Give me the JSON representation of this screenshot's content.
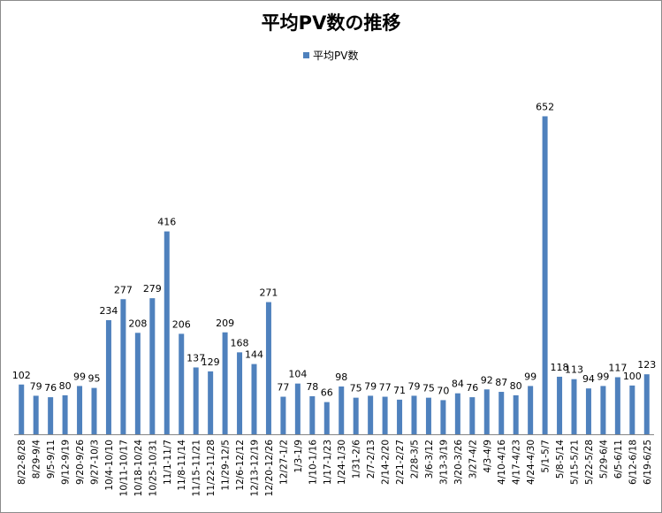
{
  "chart_data": {
    "type": "bar",
    "title": "平均PV数の推移",
    "legend": "平均PV数",
    "legend_position": "top",
    "xlabel": "",
    "ylabel": "",
    "ylim": [
      0,
      700
    ],
    "grid": false,
    "bar_color": "#4f81bd",
    "categories": [
      "8/22-8/28",
      "8/29-9/4",
      "9/5-9/11",
      "9/12-9/19",
      "9/20-9/26",
      "9/27-10/3",
      "10/4-10/10",
      "10/11-10/17",
      "10/18-10/24",
      "10/25-10/31",
      "11/1-11/7",
      "11/8-11/14",
      "11/15-11/21",
      "11/22-11/28",
      "11/29-12/5",
      "12/6-12/12",
      "12/13-12/19",
      "12/20-12/26",
      "12/27-1/2",
      "1/3-1/9",
      "1/10-1/16",
      "1/17-1/23",
      "1/24-1/30",
      "1/31-2/6",
      "2/7-2/13",
      "2/14-2/20",
      "2/21-2/27",
      "2/28-3/5",
      "3/6-3/12",
      "3/13-3/19",
      "3/20-3/26",
      "3/27-4/2",
      "4/3-4/9",
      "4/10-4/16",
      "4/17-4/23",
      "4/24-4/30",
      "5/1-5/7",
      "5/8-5/14",
      "5/15-5/21",
      "5/22-5/28",
      "5/29-6/4",
      "6/5-6/11",
      "6/12-6/18",
      "6/19-6/25"
    ],
    "values": [
      102,
      79,
      76,
      80,
      99,
      95,
      234,
      277,
      208,
      279,
      416,
      206,
      137,
      129,
      209,
      168,
      144,
      271,
      77,
      104,
      78,
      66,
      98,
      75,
      79,
      77,
      71,
      79,
      75,
      70,
      84,
      76,
      92,
      87,
      80,
      99,
      652,
      118,
      113,
      94,
      99,
      117,
      100,
      123
    ]
  }
}
